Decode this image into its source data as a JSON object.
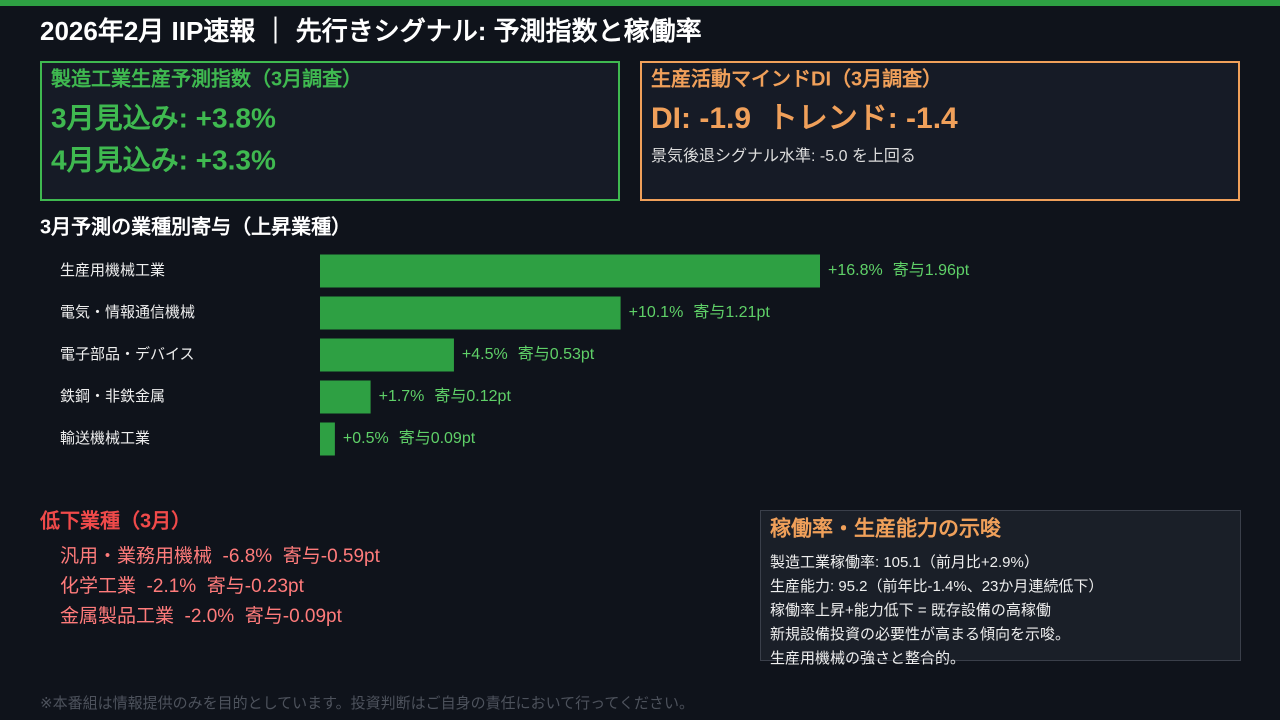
{
  "header": {
    "title": "2026年2月 IIP速報 ｜ 先行きシグナル: 予測指数と稼働率"
  },
  "forecast_panel": {
    "title": "製造工業生産予測指数（3月調査）",
    "lines": [
      "3月見込み: +3.8%",
      "4月見込み: +3.3%"
    ]
  },
  "mind_panel": {
    "title": "生産活動マインドDI（3月調査）",
    "main": "DI: -1.9  トレンド: -1.4",
    "note": "景気後退シグナル水準: -5.0 を上回る"
  },
  "chart_data": {
    "type": "bar",
    "title": "3月予測の業種別寄与（上昇業種）",
    "categories": [
      "生産用機械工業",
      "電気・情報通信機械",
      "電子部品・デバイス",
      "鉄鋼・非鉄金属",
      "輸送機械工業"
    ],
    "values": [
      16.8,
      10.1,
      4.5,
      1.7,
      0.5
    ],
    "value_labels": [
      "+16.8%",
      "+10.1%",
      "+4.5%",
      "+1.7%",
      "+0.5%"
    ],
    "contribution_labels": [
      "寄与1.96pt",
      "寄与1.21pt",
      "寄与0.53pt",
      "寄与0.12pt",
      "寄与0.09pt"
    ],
    "color": "#2ea043"
  },
  "decline": {
    "title": "低下業種（3月）",
    "items": [
      "汎用・業務用機械  -6.8%  寄与-0.59pt",
      "化学工業  -2.1%  寄与-0.23pt",
      "金属製品工業  -2.0%  寄与-0.09pt"
    ]
  },
  "utilization": {
    "title": "稼働率・生産能力の示唆",
    "lines": [
      "製造工業稼働率: 105.1（前月比+2.9%）",
      "生産能力: 95.2（前年比-1.4%、23か月連続低下）",
      "稼働率上昇+能力低下 = 既存設備の高稼働",
      "新規設備投資の必要性が高まる傾向を示唆。",
      "生産用機械の強さと整合的。"
    ]
  },
  "footer": "※本番組は情報提供のみを目的としています。投資判断はご自身の責任において行ってください。"
}
